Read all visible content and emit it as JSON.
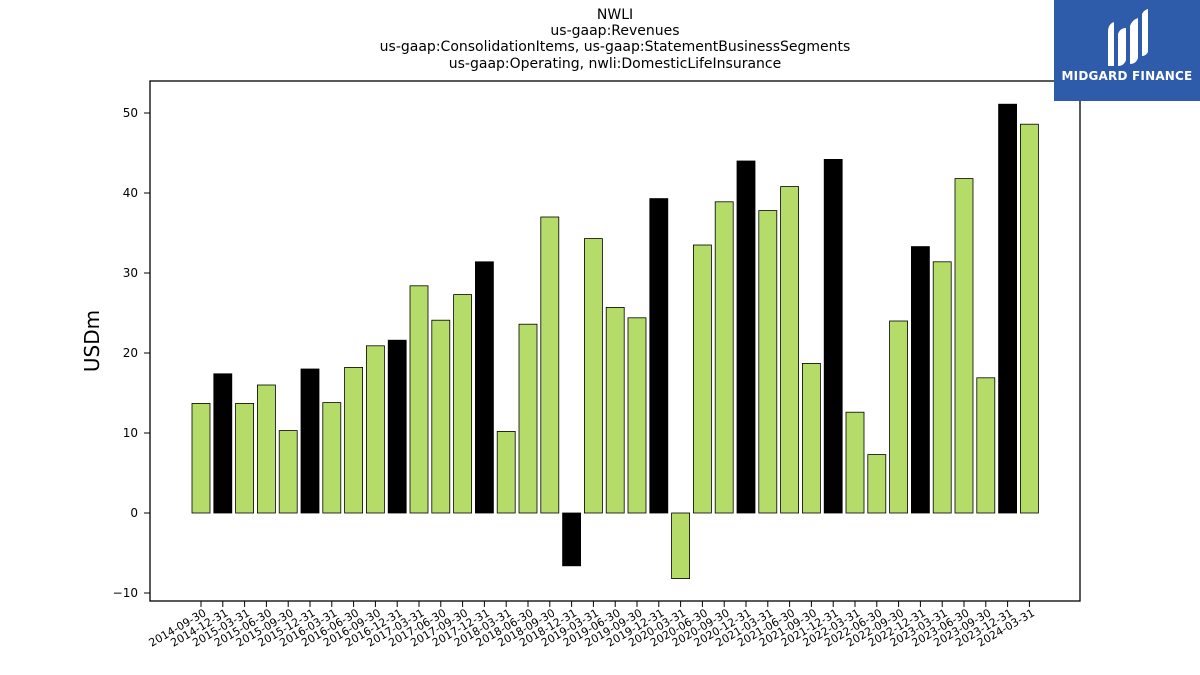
{
  "chart_data": {
    "type": "bar",
    "title": [
      "NWLI",
      "us-gaap:Revenues",
      "us-gaap:ConsolidationItems, us-gaap:StatementBusinessSegments",
      "us-gaap:Operating, nwli:DomesticLifeInsurance"
    ],
    "xlabel": "",
    "ylabel": "USDm",
    "ylim": [
      -11,
      54
    ],
    "yticks": [
      -10,
      0,
      10,
      20,
      30,
      40,
      50
    ],
    "grid": false,
    "legend": "none",
    "colors": {
      "quarter": "#b5dc68",
      "year_end": "#000000",
      "edge": "#000000"
    },
    "categories": [
      "2014-09-30",
      "2014-12-31",
      "2015-03-31",
      "2015-06-30",
      "2015-09-30",
      "2015-12-31",
      "2016-03-31",
      "2016-06-30",
      "2016-09-30",
      "2016-12-31",
      "2017-03-31",
      "2017-06-30",
      "2017-09-30",
      "2017-12-31",
      "2018-03-31",
      "2018-06-30",
      "2018-09-30",
      "2018-12-31",
      "2019-03-31",
      "2019-06-30",
      "2019-09-30",
      "2019-12-31",
      "2020-03-31",
      "2020-06-30",
      "2020-09-30",
      "2020-12-31",
      "2021-03-31",
      "2021-06-30",
      "2021-09-30",
      "2021-12-31",
      "2022-03-31",
      "2022-06-30",
      "2022-09-30",
      "2022-12-31",
      "2023-03-31",
      "2023-06-30",
      "2023-09-30",
      "2023-12-31",
      "2024-03-31"
    ],
    "values": [
      13.7,
      17.4,
      13.7,
      16.0,
      10.3,
      18.0,
      13.8,
      18.2,
      20.9,
      21.6,
      28.4,
      24.1,
      27.3,
      31.4,
      10.2,
      23.6,
      37.0,
      -6.6,
      34.3,
      25.7,
      24.4,
      39.3,
      -8.2,
      33.5,
      38.9,
      44.0,
      37.8,
      40.8,
      18.7,
      44.2,
      12.6,
      7.3,
      24.0,
      33.3,
      31.4,
      41.8,
      16.9,
      51.1,
      48.6
    ]
  },
  "logo": {
    "text": "MIDGARD FINANCE",
    "icon": "midgard-logo-icon"
  }
}
